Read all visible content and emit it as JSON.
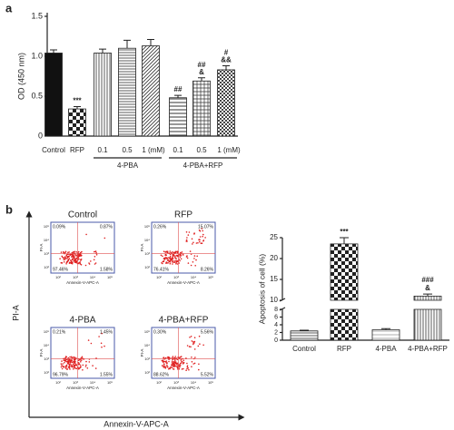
{
  "panel_labels": [
    "a",
    "b"
  ],
  "chart_data": [
    {
      "type": "bar",
      "ylabel": "OD (450 nm)",
      "categories": [
        "Control",
        "RFP",
        "0.1",
        "0.5",
        "1 (mM)",
        "0.1",
        "0.5",
        "1 (mM)"
      ],
      "group_labels": [
        "4-PBA",
        "4-PBA+RFP"
      ],
      "values": [
        1.04,
        0.34,
        1.04,
        1.1,
        1.13,
        0.48,
        0.69,
        0.83
      ],
      "errors": [
        0.04,
        0.03,
        0.05,
        0.1,
        0.08,
        0.03,
        0.04,
        0.05
      ],
      "annotations": [
        null,
        [
          "***"
        ],
        null,
        null,
        null,
        [
          "##"
        ],
        [
          "##",
          "&"
        ],
        [
          "#",
          "&&"
        ]
      ],
      "fills": [
        "solid",
        "checker",
        "vlines",
        "hlines",
        "diag",
        "hlines-wide",
        "grid",
        "checker-fine"
      ],
      "ylim": [
        0,
        1.5
      ],
      "yticks": [
        0,
        0.5,
        {
          "value": 1.0,
          "label": "1.0"
        },
        1.5
      ]
    },
    {
      "type": "broken-bar",
      "ylabel": "Apoptosis of cell (%)",
      "categories": [
        "Control",
        "RFP",
        "4-PBA",
        "4-PBA+RFP"
      ],
      "values": [
        2.4,
        23.5,
        2.7,
        11.0
      ],
      "errors": [
        0.2,
        1.5,
        0.3,
        0.5
      ],
      "annotations": [
        null,
        [
          "***"
        ],
        null,
        [
          "###",
          "&"
        ]
      ],
      "fills": [
        "hlines",
        "checker",
        "hlines-light",
        "vlines"
      ],
      "ylim": [
        0,
        25
      ],
      "y_break": [
        8,
        10
      ],
      "yticks": [
        0,
        2,
        4,
        6,
        8,
        10,
        15,
        20,
        25
      ]
    }
  ],
  "flow_cytometry": {
    "y_label": "PI-A",
    "x_label": "Annexin-V-APC-A",
    "plot_y_label": "PI-A",
    "plot_x_label": "Annexin-V-APC-A",
    "axis_ticks": [
      "10²",
      "10³",
      "10⁴",
      "10⁵"
    ],
    "plots": [
      {
        "title": "Control",
        "upper_left": "0.09%",
        "upper_right": "0.87%",
        "lower_left": "97.46%",
        "lower_right": "1.58%"
      },
      {
        "title": "RFP",
        "upper_left": "0.26%",
        "upper_right": "15.07%",
        "lower_left": "76.41%",
        "lower_right": "8.26%"
      },
      {
        "title": "4-PBA",
        "upper_left": "0.21%",
        "upper_right": "1.45%",
        "lower_left": "96.79%",
        "lower_right": "1.55%"
      },
      {
        "title": "4-PBA+RFP",
        "upper_left": "0.30%",
        "upper_right": "5.56%",
        "lower_left": "88.62%",
        "lower_right": "5.52%"
      }
    ]
  }
}
